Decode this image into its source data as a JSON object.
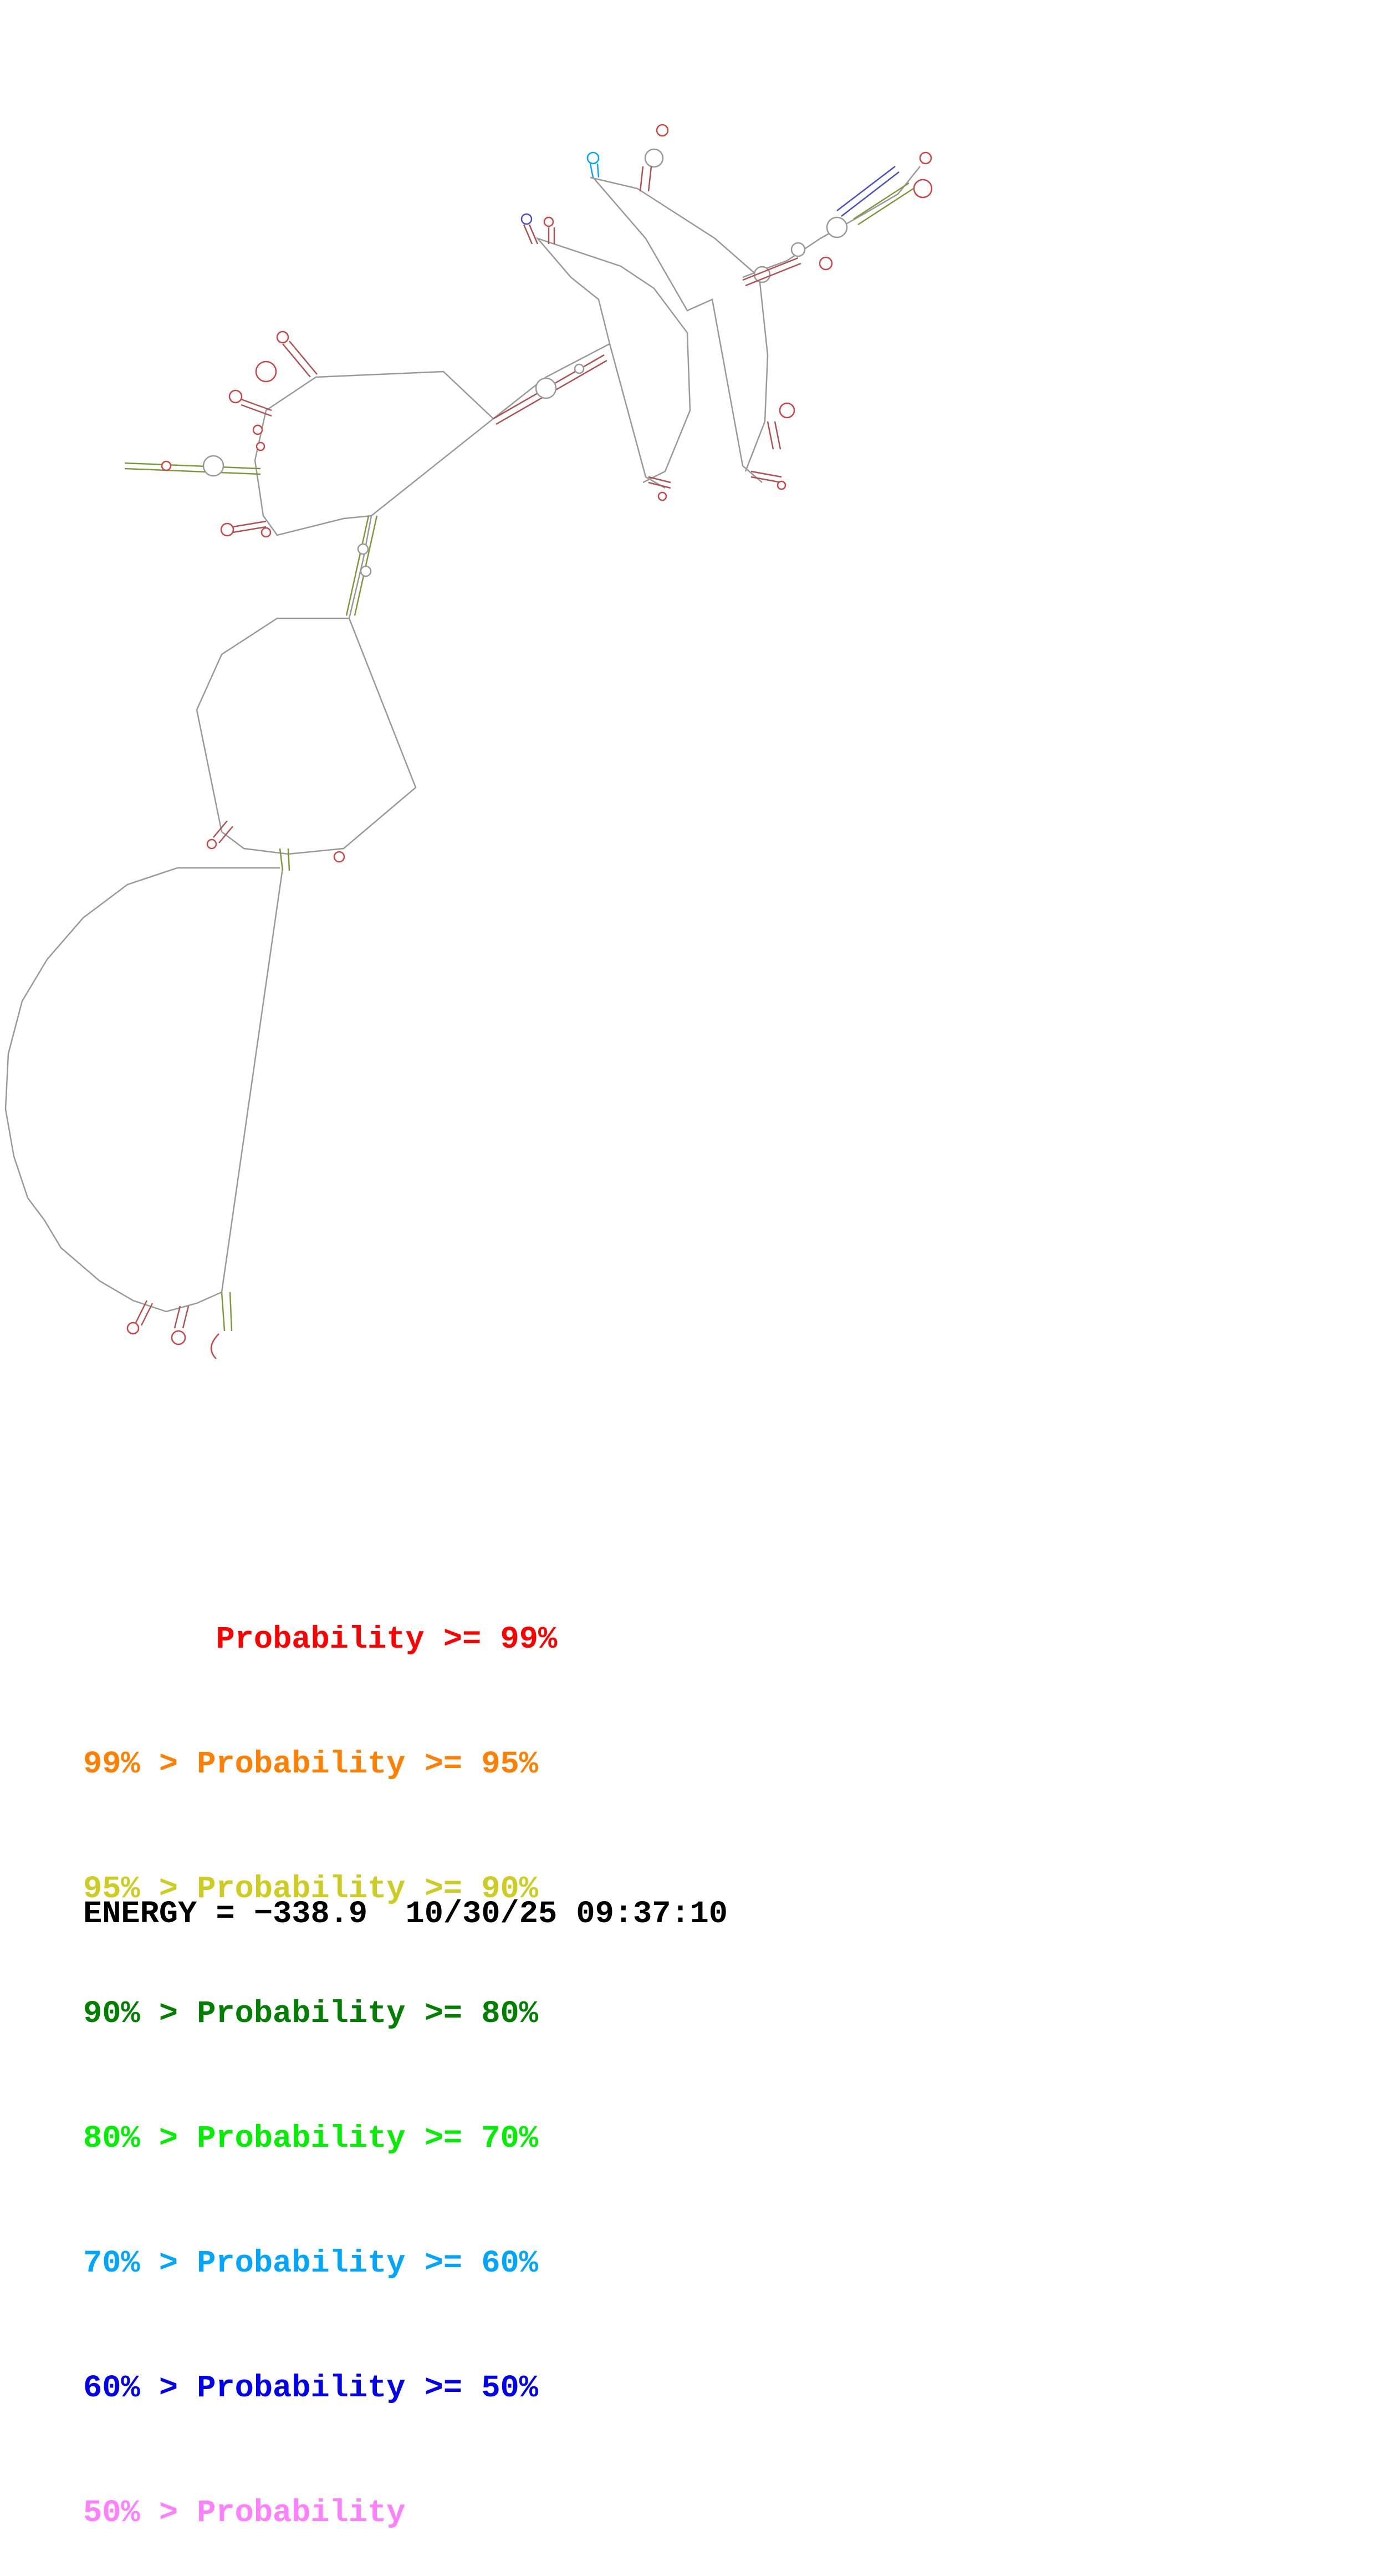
{
  "diagram": {
    "line_color": "#999999",
    "node_color": "#aaaaaa"
  },
  "legend": [
    {
      "prefix": "       ",
      "text": "Probability >= 99%",
      "color": "#ff0000"
    },
    {
      "prefix": "99% > ",
      "text": "Probability >= 95%",
      "color": "#ff7f00"
    },
    {
      "prefix": "95% > ",
      "text": "Probability >= 90%",
      "color": "#cccc22"
    },
    {
      "prefix": "90% > ",
      "text": "Probability >= 80%",
      "color": "#007f00"
    },
    {
      "prefix": "80% > ",
      "text": "Probability >= 70%",
      "color": "#00ee00"
    },
    {
      "prefix": "70% > ",
      "text": "Probability >= 60%",
      "color": "#00a5ff"
    },
    {
      "prefix": "60% > ",
      "text": "Probability >= 50%",
      "color": "#0000ee"
    },
    {
      "prefix": "50% > ",
      "text": "Probability",
      "color": "#ff80ff"
    }
  ],
  "footer": {
    "energy_label": "ENERGY = ",
    "energy_value": "−338.9",
    "timestamp": "10/30/25 09:37:10"
  }
}
